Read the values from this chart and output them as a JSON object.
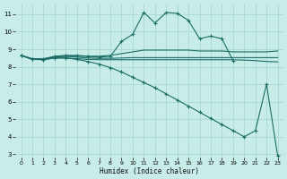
{
  "xlabel": "Humidex (Indice chaleur)",
  "bg_color": "#c8ece8",
  "grid_color": "#a8d8d4",
  "line_color": "#1a6e65",
  "xlim": [
    -0.5,
    23.5
  ],
  "ylim": [
    2.8,
    11.6
  ],
  "yticks": [
    3,
    4,
    5,
    6,
    7,
    8,
    9,
    10,
    11
  ],
  "xticks": [
    0,
    1,
    2,
    3,
    4,
    5,
    6,
    7,
    8,
    9,
    10,
    11,
    12,
    13,
    14,
    15,
    16,
    17,
    18,
    19,
    20,
    21,
    22,
    23
  ],
  "series": [
    {
      "x": [
        0,
        1,
        2,
        3,
        4,
        5,
        6,
        7,
        8,
        9,
        10,
        11,
        12,
        13,
        14,
        15,
        16,
        17,
        18,
        19
      ],
      "y": [
        8.65,
        8.45,
        8.45,
        8.6,
        8.65,
        8.65,
        8.6,
        8.55,
        8.6,
        9.45,
        9.85,
        11.1,
        10.5,
        11.1,
        11.05,
        10.65,
        9.6,
        9.75,
        9.6,
        8.35
      ],
      "marker": true
    },
    {
      "x": [
        0,
        1,
        2,
        3,
        4,
        5,
        6,
        7,
        8,
        9,
        10,
        11,
        12,
        13,
        14,
        15,
        16,
        17,
        18,
        19,
        20,
        21,
        22,
        23
      ],
      "y": [
        8.65,
        8.45,
        8.45,
        8.55,
        8.6,
        8.6,
        8.6,
        8.6,
        8.65,
        8.75,
        8.85,
        8.95,
        8.95,
        8.95,
        8.95,
        8.95,
        8.9,
        8.9,
        8.9,
        8.85,
        8.85,
        8.85,
        8.85,
        8.9
      ],
      "marker": false
    },
    {
      "x": [
        0,
        1,
        2,
        3,
        4,
        5,
        6,
        7,
        8,
        9,
        10,
        11,
        12,
        13,
        14,
        15,
        16,
        17,
        18,
        19,
        20,
        21,
        22,
        23
      ],
      "y": [
        8.65,
        8.45,
        8.45,
        8.55,
        8.6,
        8.55,
        8.5,
        8.48,
        8.48,
        8.5,
        8.52,
        8.52,
        8.52,
        8.52,
        8.52,
        8.52,
        8.52,
        8.52,
        8.52,
        8.52,
        8.52,
        8.52,
        8.52,
        8.52
      ],
      "marker": false
    },
    {
      "x": [
        0,
        1,
        2,
        3,
        4,
        5,
        6,
        7,
        8,
        9,
        10,
        11,
        12,
        13,
        14,
        15,
        16,
        17,
        18,
        19,
        20,
        21,
        22,
        23
      ],
      "y": [
        8.65,
        8.42,
        8.42,
        8.5,
        8.5,
        8.46,
        8.42,
        8.4,
        8.4,
        8.4,
        8.4,
        8.4,
        8.4,
        8.4,
        8.4,
        8.4,
        8.4,
        8.4,
        8.4,
        8.4,
        8.38,
        8.35,
        8.3,
        8.28
      ],
      "marker": false
    },
    {
      "x": [
        0,
        1,
        2,
        3,
        4,
        5,
        6,
        7,
        8,
        9,
        10,
        11,
        12,
        13,
        14,
        15,
        16,
        17,
        18,
        19,
        20,
        21,
        22,
        23
      ],
      "y": [
        8.65,
        8.42,
        8.4,
        8.5,
        8.5,
        8.42,
        8.3,
        8.15,
        7.95,
        7.7,
        7.4,
        7.1,
        6.8,
        6.45,
        6.1,
        5.75,
        5.4,
        5.05,
        4.7,
        4.35,
        4.0,
        4.35,
        7.0,
        2.9
      ],
      "marker": true
    }
  ]
}
